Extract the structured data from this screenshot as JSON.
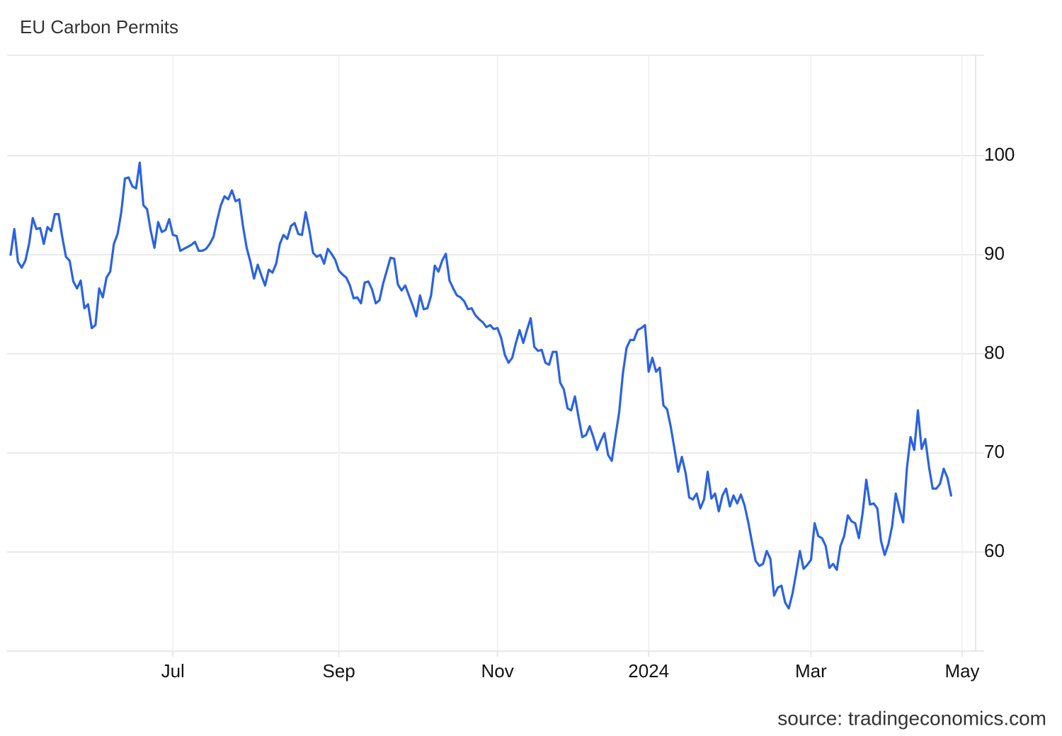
{
  "chart_data": {
    "type": "line",
    "title": "EU Carbon Permits",
    "source": "source: tradingeconomics.com",
    "color": "#2b62e3",
    "grid": true,
    "ylim": [
      50,
      110
    ],
    "yticks": [
      60,
      70,
      80,
      90,
      100
    ],
    "categories": [
      null,
      null,
      null,
      null,
      null,
      null,
      null,
      null,
      null,
      null,
      null,
      null,
      null,
      null,
      null,
      null,
      null,
      null,
      null,
      null,
      null,
      null,
      null,
      null,
      null,
      null,
      null,
      null,
      null,
      null,
      null,
      null,
      null,
      null,
      null,
      null,
      null,
      null,
      null,
      null,
      null,
      null,
      null,
      null,
      "Jul",
      null,
      null,
      null,
      null,
      null,
      null,
      null,
      null,
      null,
      null,
      null,
      null,
      null,
      null,
      null,
      null,
      null,
      null,
      null,
      null,
      null,
      null,
      null,
      null,
      null,
      null,
      null,
      null,
      null,
      null,
      null,
      null,
      null,
      null,
      null,
      null,
      null,
      null,
      null,
      null,
      null,
      null,
      null,
      null,
      "Sep",
      null,
      null,
      null,
      null,
      null,
      null,
      null,
      null,
      null,
      null,
      null,
      null,
      null,
      null,
      null,
      null,
      null,
      null,
      null,
      null,
      null,
      null,
      null,
      null,
      null,
      null,
      null,
      null,
      null,
      null,
      null,
      null,
      null,
      null,
      null,
      null,
      null,
      null,
      null,
      null,
      null,
      null,
      "Nov",
      null,
      null,
      null,
      null,
      null,
      null,
      null,
      null,
      null,
      null,
      null,
      null,
      null,
      null,
      null,
      null,
      null,
      null,
      null,
      null,
      null,
      null,
      null,
      null,
      null,
      null,
      null,
      null,
      null,
      null,
      null,
      null,
      null,
      null,
      null,
      null,
      null,
      null,
      null,
      null,
      "2024",
      null,
      null,
      null,
      null,
      null,
      null,
      null,
      null,
      null,
      null,
      null,
      null,
      null,
      null,
      null,
      null,
      null,
      null,
      null,
      null,
      null,
      null,
      null,
      null,
      null,
      null,
      null,
      null,
      null,
      null,
      null,
      null,
      null,
      null,
      null,
      null,
      null,
      null,
      null,
      null,
      null,
      null,
      null,
      "Mar",
      null,
      null,
      null,
      null,
      null,
      null,
      null,
      null,
      null,
      null,
      null,
      null,
      null,
      null,
      null,
      null,
      null,
      null,
      null,
      null,
      null,
      null,
      null,
      null,
      null,
      null,
      null,
      null,
      null,
      null,
      null,
      null,
      null,
      null,
      null,
      null,
      null,
      null,
      null,
      null,
      "May"
    ],
    "values": [
      90.0,
      92.6,
      89.3,
      88.7,
      89.4,
      91.1,
      93.7,
      92.6,
      92.7,
      91.1,
      92.8,
      92.4,
      94.1,
      94.1,
      91.8,
      89.8,
      89.4,
      87.3,
      86.6,
      87.4,
      84.6,
      85.0,
      82.6,
      82.9,
      86.6,
      85.7,
      87.7,
      88.3,
      91.1,
      92.1,
      94.3,
      97.7,
      97.8,
      96.9,
      96.7,
      99.3,
      95.0,
      94.6,
      92.4,
      90.7,
      93.3,
      92.3,
      92.5,
      93.6,
      92.0,
      91.9,
      90.4,
      90.6,
      90.8,
      91.0,
      91.3,
      90.4,
      90.4,
      90.6,
      91.1,
      91.8,
      93.5,
      95.0,
      95.9,
      95.6,
      96.5,
      95.4,
      95.6,
      92.9,
      90.7,
      89.3,
      87.6,
      89.0,
      87.9,
      86.9,
      88.5,
      88.2,
      89.1,
      91.1,
      92.0,
      91.6,
      92.9,
      93.2,
      92.1,
      92.0,
      94.3,
      92.5,
      90.2,
      89.8,
      90.0,
      89.1,
      90.6,
      90.1,
      89.5,
      88.4,
      88.0,
      87.7,
      86.9,
      85.6,
      85.7,
      85.1,
      87.2,
      87.3,
      86.5,
      85.1,
      85.4,
      87.1,
      88.4,
      89.7,
      89.6,
      87.0,
      86.4,
      86.9,
      85.9,
      84.9,
      83.8,
      85.9,
      84.5,
      84.6,
      85.9,
      88.9,
      88.3,
      89.4,
      90.1,
      87.4,
      86.6,
      85.9,
      85.7,
      85.3,
      84.5,
      84.6,
      83.9,
      83.5,
      83.2,
      82.7,
      82.9,
      82.5,
      82.6,
      81.6,
      79.9,
      79.1,
      79.6,
      81.1,
      82.4,
      81.1,
      82.4,
      83.6,
      80.7,
      80.3,
      80.4,
      79.1,
      78.9,
      80.2,
      80.2,
      77.1,
      76.4,
      74.5,
      74.3,
      75.7,
      73.6,
      71.6,
      71.8,
      72.7,
      71.6,
      70.3,
      71.2,
      72.0,
      69.8,
      69.2,
      71.7,
      74.1,
      78.0,
      80.6,
      81.4,
      81.4,
      82.4,
      82.6,
      82.9,
      78.2,
      79.6,
      78.2,
      78.6,
      74.8,
      74.4,
      72.6,
      70.4,
      68.1,
      69.6,
      68.0,
      65.5,
      65.3,
      65.9,
      64.4,
      65.3,
      68.1,
      65.4,
      65.9,
      64.1,
      65.7,
      66.4,
      64.6,
      65.7,
      64.9,
      65.8,
      64.7,
      63.0,
      61.0,
      59.1,
      58.6,
      58.8,
      60.1,
      59.3,
      55.6,
      56.4,
      56.6,
      54.9,
      54.3,
      55.8,
      57.9,
      60.1,
      58.3,
      58.7,
      59.2,
      62.9,
      61.6,
      61.4,
      60.6,
      58.4,
      58.8,
      58.2,
      60.6,
      61.6,
      63.7,
      63.1,
      62.9,
      61.4,
      63.9,
      67.3,
      64.8,
      64.9,
      64.4,
      61.1,
      59.7,
      60.8,
      62.6,
      65.9,
      64.3,
      63.0,
      68.4,
      71.6,
      70.3,
      74.3,
      70.4,
      71.4,
      68.6,
      66.4,
      66.4,
      66.9,
      68.4,
      67.5,
      65.7,
      null,
      null,
      null
    ]
  }
}
